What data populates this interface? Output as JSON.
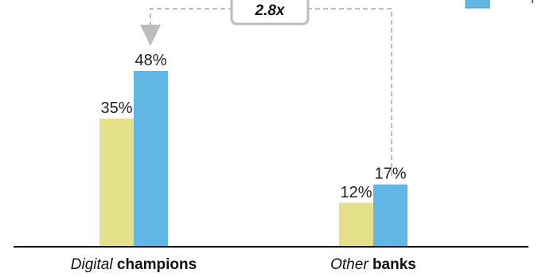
{
  "chart_data": {
    "type": "bar",
    "categories": [
      {
        "italic": "Digital",
        "bold": "champions"
      },
      {
        "italic": "Other",
        "bold": "banks"
      }
    ],
    "series": [
      {
        "color": "#e4e18a",
        "values": [
          35,
          12
        ],
        "labels": [
          "35%",
          "12%"
        ]
      },
      {
        "color": "#62b6e4",
        "values": [
          48,
          17
        ],
        "labels": [
          "48%",
          "17%"
        ]
      }
    ],
    "ylim": [
      0,
      60
    ],
    "grid": false,
    "legend": "top-right",
    "annotation": {
      "text": "2.8x",
      "from": "Other banks, series 2",
      "to": "Digital champions, series 2"
    }
  },
  "colors": {
    "baseline": "#111111",
    "connector": "#bdbdbd",
    "arrow_head": "#bdbdbd",
    "annotation_border": "#bdbdbd"
  }
}
